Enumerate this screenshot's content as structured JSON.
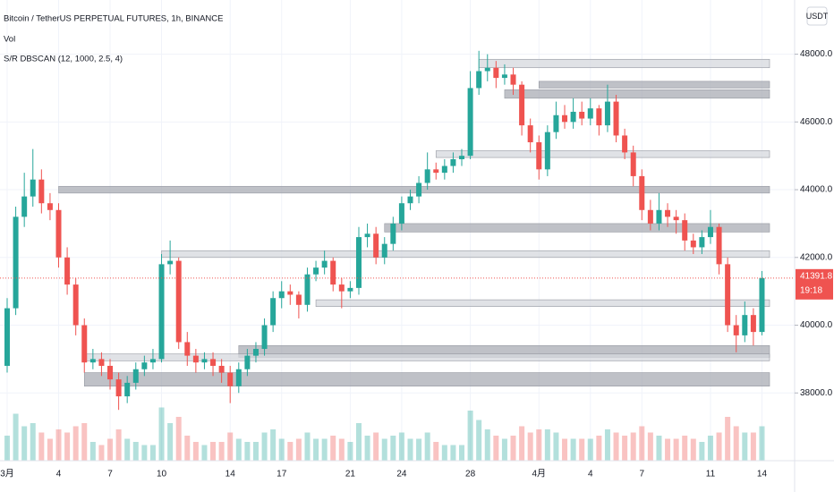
{
  "chart_data": {
    "type": "candlestick",
    "title": "Bitcoin / TetherUS PERPETUAL FUTURES, 1h, BINANCE",
    "indicators": [
      "Vol",
      "S/R DBSCAN (12, 1000, 2.5, 4)"
    ],
    "currency": "USDT",
    "categories": [
      "3月",
      null,
      null,
      null,
      null,
      null,
      "4",
      null,
      null,
      null,
      null,
      null,
      "7",
      null,
      null,
      null,
      null,
      null,
      "10",
      null,
      null,
      null,
      null,
      null,
      null,
      null,
      "14",
      null,
      null,
      null,
      null,
      null,
      "17",
      null,
      null,
      null,
      null,
      null,
      null,
      null,
      "21",
      null,
      null,
      null,
      null,
      null,
      "24",
      null,
      null,
      null,
      null,
      null,
      null,
      null,
      "28",
      null,
      null,
      null,
      null,
      null,
      null,
      null,
      "4月",
      null,
      null,
      null,
      null,
      null,
      "4",
      null,
      null,
      null,
      null,
      null,
      "7",
      null,
      null,
      null,
      null,
      null,
      null,
      null,
      "11",
      null,
      null,
      null,
      null,
      null,
      "14"
    ],
    "open": [
      38800,
      40500,
      43200,
      43800,
      44300,
      43600,
      43400,
      42000,
      41200,
      40000,
      38900,
      39000,
      38800,
      38400,
      37900,
      38300,
      38700,
      38900,
      39000,
      41800,
      41900,
      39500,
      39100,
      38900,
      39000,
      38800,
      38600,
      38200,
      38700,
      39100,
      39300,
      40000,
      40800,
      41000,
      40900,
      40600,
      41500,
      41700,
      41900,
      41200,
      41000,
      41100,
      42600,
      42700,
      42000,
      42400,
      43000,
      43600,
      43800,
      44200,
      44600,
      44500,
      44700,
      44900,
      45000,
      47000,
      47500,
      47600,
      47300,
      47400,
      47100,
      45900,
      45400,
      44600,
      45700,
      46200,
      46000,
      46300,
      46100,
      46400,
      45900,
      46600,
      45600,
      45100,
      44400,
      43400,
      43000,
      43400,
      43200,
      43100,
      42500,
      42300,
      42600,
      42900,
      41800,
      40000,
      39700,
      40300,
      39800
    ],
    "high": [
      40800,
      43500,
      44500,
      45200,
      44600,
      43900,
      43600,
      42300,
      41400,
      40200,
      39300,
      39200,
      39000,
      38600,
      38500,
      38900,
      39100,
      39300,
      42100,
      42500,
      42000,
      39800,
      39300,
      39200,
      39200,
      39000,
      38800,
      38900,
      39300,
      39500,
      40200,
      41000,
      41300,
      41200,
      41000,
      41700,
      41900,
      42200,
      42000,
      41400,
      41300,
      42900,
      43000,
      42900,
      42600,
      43200,
      43800,
      44000,
      44400,
      45100,
      44800,
      44900,
      45100,
      45200,
      47500,
      48100,
      48000,
      47800,
      47700,
      47600,
      47200,
      46100,
      45600,
      45900,
      46600,
      46500,
      46700,
      46600,
      46700,
      46500,
      47100,
      46800,
      45800,
      45300,
      44600,
      43700,
      43900,
      43600,
      43400,
      43300,
      42700,
      42800,
      43400,
      43000,
      42000,
      40300,
      40700,
      40500,
      41600
    ],
    "low": [
      38600,
      40300,
      42900,
      43500,
      43300,
      43100,
      41700,
      40900,
      39700,
      38600,
      38700,
      38500,
      38100,
      37500,
      37700,
      38100,
      38500,
      38700,
      38900,
      41500,
      39300,
      38800,
      38600,
      38700,
      38500,
      38300,
      37700,
      38000,
      38500,
      38900,
      39100,
      39800,
      40500,
      40600,
      40200,
      40400,
      41300,
      41500,
      41000,
      40500,
      40800,
      40900,
      42300,
      41800,
      41800,
      42200,
      42800,
      43400,
      43600,
      44000,
      44300,
      44300,
      44500,
      44700,
      44900,
      46800,
      47200,
      47000,
      47100,
      46800,
      45600,
      45100,
      44300,
      44400,
      45500,
      45800,
      45800,
      45900,
      45900,
      45600,
      45700,
      45400,
      44900,
      44100,
      43100,
      42800,
      42800,
      42900,
      42700,
      42200,
      42100,
      42100,
      42400,
      41500,
      39800,
      39200,
      39500,
      39400,
      39700
    ],
    "close": [
      40500,
      43200,
      43800,
      44300,
      43600,
      43400,
      42000,
      41200,
      40000,
      38900,
      39000,
      38800,
      38400,
      37900,
      38300,
      38700,
      38900,
      39000,
      41800,
      41900,
      39500,
      39100,
      38900,
      39000,
      38800,
      38600,
      38200,
      38700,
      39100,
      39300,
      40000,
      40800,
      41000,
      40900,
      40600,
      41500,
      41700,
      41900,
      41200,
      41000,
      41100,
      42600,
      42700,
      42000,
      42400,
      43000,
      43600,
      43800,
      44200,
      44600,
      44500,
      44700,
      44900,
      45000,
      47000,
      47500,
      47600,
      47300,
      47400,
      47100,
      45900,
      45400,
      44600,
      45700,
      46200,
      46000,
      46300,
      46100,
      46400,
      45900,
      46600,
      45600,
      45100,
      44400,
      43400,
      43000,
      43400,
      43200,
      43100,
      42500,
      42300,
      42600,
      42900,
      41800,
      40000,
      39700,
      40300,
      39800,
      41391.8
    ],
    "volume": [
      40,
      75,
      55,
      60,
      45,
      35,
      50,
      45,
      55,
      60,
      30,
      25,
      35,
      50,
      35,
      30,
      25,
      25,
      85,
      60,
      70,
      40,
      30,
      25,
      30,
      30,
      45,
      35,
      30,
      30,
      45,
      50,
      35,
      30,
      35,
      45,
      35,
      35,
      40,
      35,
      30,
      60,
      40,
      45,
      35,
      40,
      45,
      35,
      35,
      45,
      30,
      25,
      25,
      25,
      80,
      65,
      50,
      40,
      35,
      40,
      55,
      45,
      50,
      50,
      45,
      35,
      35,
      35,
      35,
      40,
      50,
      45,
      40,
      45,
      55,
      45,
      40,
      35,
      35,
      40,
      35,
      30,
      40,
      45,
      70,
      55,
      45,
      45,
      55
    ],
    "vlim": [
      0,
      100
    ],
    "up_color": "#26a69a",
    "down_color": "#ef5350",
    "zones": [
      {
        "start": 55,
        "high": 47850,
        "low": 47600,
        "color": "#d6d8de"
      },
      {
        "start": 62,
        "high": 47200,
        "low": 47000,
        "color": "#a9acb4"
      },
      {
        "start": 58,
        "high": 46950,
        "low": 46700,
        "color": "#a9acb4"
      },
      {
        "start": 50,
        "high": 45150,
        "low": 44950,
        "color": "#d6d8de"
      },
      {
        "start": 6,
        "high": 44100,
        "low": 43900,
        "color": "#a9acb4"
      },
      {
        "start": 44,
        "high": 43000,
        "low": 42750,
        "color": "#a9acb4"
      },
      {
        "start": 18,
        "high": 42200,
        "low": 42000,
        "color": "#d6d8de"
      },
      {
        "start": 36,
        "high": 40750,
        "low": 40550,
        "color": "#d6d8de"
      },
      {
        "start": 27,
        "high": 39400,
        "low": 39050,
        "color": "#a9acb4"
      },
      {
        "start": 9,
        "high": 39150,
        "low": 38950,
        "color": "#d6d8de"
      },
      {
        "start": 9,
        "high": 38600,
        "low": 38200,
        "color": "#a9acb4"
      }
    ],
    "last_price": 41391.8,
    "countdown": "19:18",
    "ylim": [
      36000,
      49600
    ],
    "yticks": [
      {
        "value": 48000,
        "label": "48000.0"
      },
      {
        "value": 46000,
        "label": "46000.0"
      },
      {
        "value": 44000,
        "label": "44000.0"
      },
      {
        "value": 42000,
        "label": "42000.0"
      },
      {
        "value": 40000,
        "label": "40000.0"
      },
      {
        "value": 38000,
        "label": "38000.0"
      }
    ],
    "grid": true
  }
}
